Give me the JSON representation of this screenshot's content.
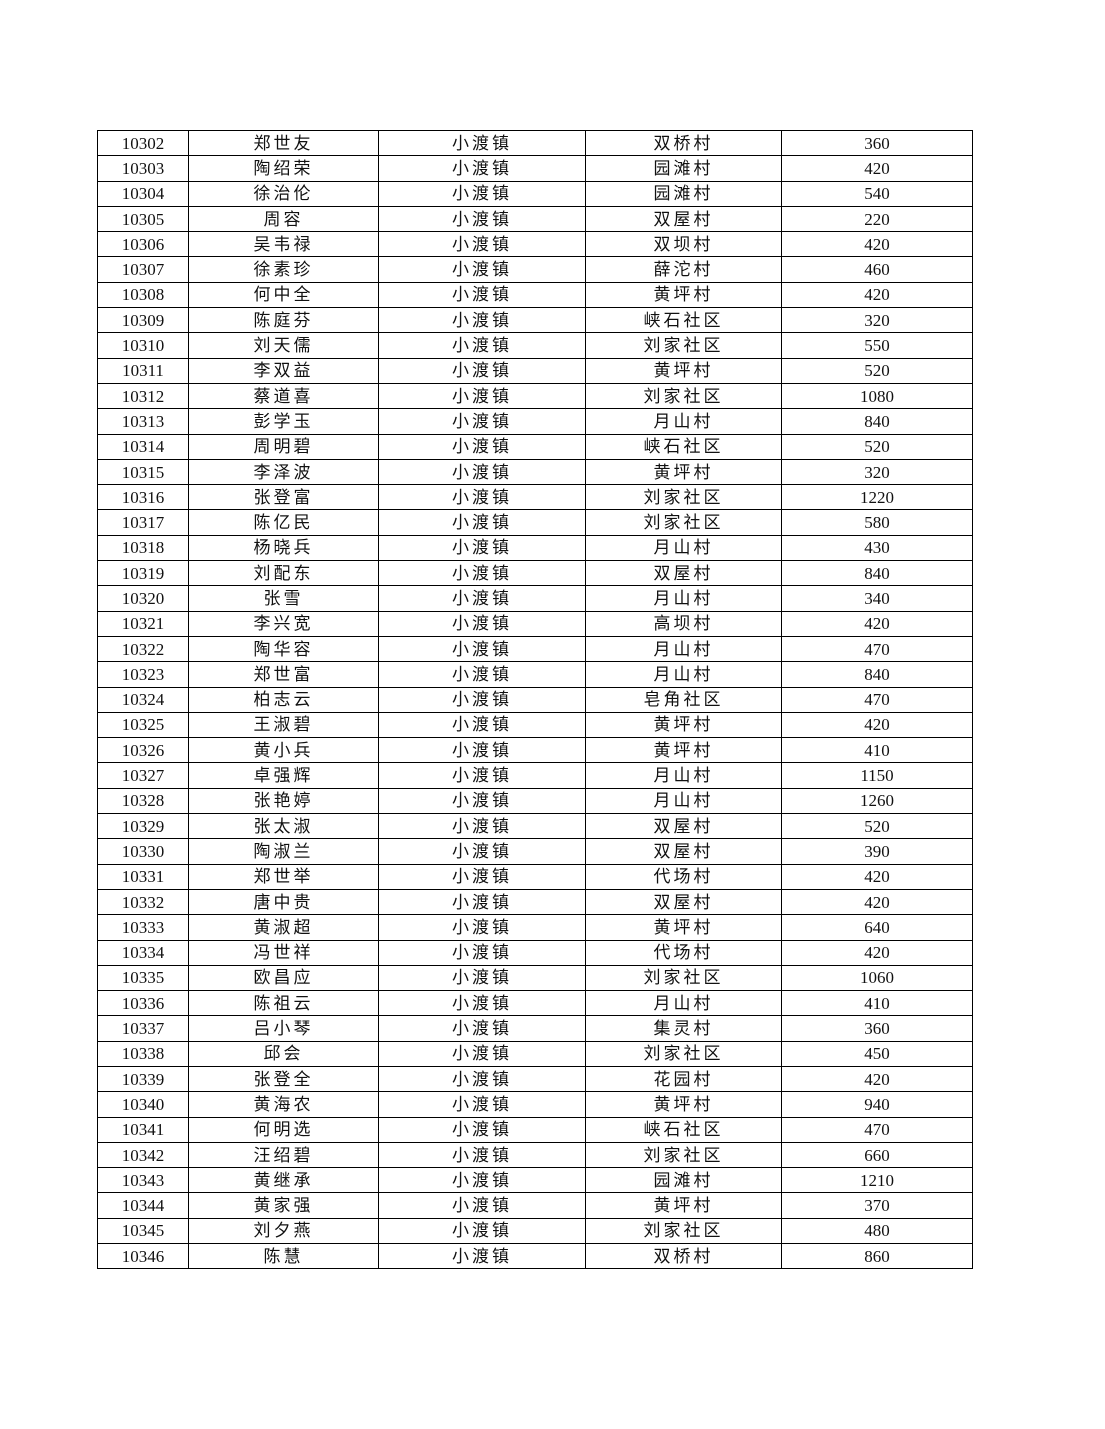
{
  "rows": [
    {
      "id": "10302",
      "name": "郑世友",
      "town": "小渡镇",
      "village": "双桥村",
      "amount": "360"
    },
    {
      "id": "10303",
      "name": "陶绍荣",
      "town": "小渡镇",
      "village": "园滩村",
      "amount": "420"
    },
    {
      "id": "10304",
      "name": "徐治伦",
      "town": "小渡镇",
      "village": "园滩村",
      "amount": "540"
    },
    {
      "id": "10305",
      "name": "周容",
      "town": "小渡镇",
      "village": "双屋村",
      "amount": "220"
    },
    {
      "id": "10306",
      "name": "吴韦禄",
      "town": "小渡镇",
      "village": "双坝村",
      "amount": "420"
    },
    {
      "id": "10307",
      "name": "徐素珍",
      "town": "小渡镇",
      "village": "薛沱村",
      "amount": "460"
    },
    {
      "id": "10308",
      "name": "何中全",
      "town": "小渡镇",
      "village": "黄坪村",
      "amount": "420"
    },
    {
      "id": "10309",
      "name": "陈庭芬",
      "town": "小渡镇",
      "village": "峡石社区",
      "amount": "320"
    },
    {
      "id": "10310",
      "name": "刘天儒",
      "town": "小渡镇",
      "village": "刘家社区",
      "amount": "550"
    },
    {
      "id": "10311",
      "name": "李双益",
      "town": "小渡镇",
      "village": "黄坪村",
      "amount": "520"
    },
    {
      "id": "10312",
      "name": "蔡道喜",
      "town": "小渡镇",
      "village": "刘家社区",
      "amount": "1080"
    },
    {
      "id": "10313",
      "name": "彭学玉",
      "town": "小渡镇",
      "village": "月山村",
      "amount": "840"
    },
    {
      "id": "10314",
      "name": "周明碧",
      "town": "小渡镇",
      "village": "峡石社区",
      "amount": "520"
    },
    {
      "id": "10315",
      "name": "李泽波",
      "town": "小渡镇",
      "village": "黄坪村",
      "amount": "320"
    },
    {
      "id": "10316",
      "name": "张登富",
      "town": "小渡镇",
      "village": "刘家社区",
      "amount": "1220"
    },
    {
      "id": "10317",
      "name": "陈亿民",
      "town": "小渡镇",
      "village": "刘家社区",
      "amount": "580"
    },
    {
      "id": "10318",
      "name": "杨晓兵",
      "town": "小渡镇",
      "village": "月山村",
      "amount": "430"
    },
    {
      "id": "10319",
      "name": "刘配东",
      "town": "小渡镇",
      "village": "双屋村",
      "amount": "840"
    },
    {
      "id": "10320",
      "name": "张雪",
      "town": "小渡镇",
      "village": "月山村",
      "amount": "340"
    },
    {
      "id": "10321",
      "name": "李兴宽",
      "town": "小渡镇",
      "village": "高坝村",
      "amount": "420"
    },
    {
      "id": "10322",
      "name": "陶华容",
      "town": "小渡镇",
      "village": "月山村",
      "amount": "470"
    },
    {
      "id": "10323",
      "name": "郑世富",
      "town": "小渡镇",
      "village": "月山村",
      "amount": "840"
    },
    {
      "id": "10324",
      "name": "柏志云",
      "town": "小渡镇",
      "village": "皂角社区",
      "amount": "470"
    },
    {
      "id": "10325",
      "name": "王淑碧",
      "town": "小渡镇",
      "village": "黄坪村",
      "amount": "420"
    },
    {
      "id": "10326",
      "name": "黄小兵",
      "town": "小渡镇",
      "village": "黄坪村",
      "amount": "410"
    },
    {
      "id": "10327",
      "name": "卓强辉",
      "town": "小渡镇",
      "village": "月山村",
      "amount": "1150"
    },
    {
      "id": "10328",
      "name": "张艳婷",
      "town": "小渡镇",
      "village": "月山村",
      "amount": "1260"
    },
    {
      "id": "10329",
      "name": "张太淑",
      "town": "小渡镇",
      "village": "双屋村",
      "amount": "520"
    },
    {
      "id": "10330",
      "name": "陶淑兰",
      "town": "小渡镇",
      "village": "双屋村",
      "amount": "390"
    },
    {
      "id": "10331",
      "name": "郑世举",
      "town": "小渡镇",
      "village": "代场村",
      "amount": "420"
    },
    {
      "id": "10332",
      "name": "唐中贵",
      "town": "小渡镇",
      "village": "双屋村",
      "amount": "420"
    },
    {
      "id": "10333",
      "name": "黄淑超",
      "town": "小渡镇",
      "village": "黄坪村",
      "amount": "640"
    },
    {
      "id": "10334",
      "name": "冯世祥",
      "town": "小渡镇",
      "village": "代场村",
      "amount": "420"
    },
    {
      "id": "10335",
      "name": "欧昌应",
      "town": "小渡镇",
      "village": "刘家社区",
      "amount": "1060"
    },
    {
      "id": "10336",
      "name": "陈祖云",
      "town": "小渡镇",
      "village": "月山村",
      "amount": "410"
    },
    {
      "id": "10337",
      "name": "吕小琴",
      "town": "小渡镇",
      "village": "集灵村",
      "amount": "360"
    },
    {
      "id": "10338",
      "name": "邱会",
      "town": "小渡镇",
      "village": "刘家社区",
      "amount": "450"
    },
    {
      "id": "10339",
      "name": "张登全",
      "town": "小渡镇",
      "village": "花园村",
      "amount": "420"
    },
    {
      "id": "10340",
      "name": "黄海农",
      "town": "小渡镇",
      "village": "黄坪村",
      "amount": "940"
    },
    {
      "id": "10341",
      "name": "何明选",
      "town": "小渡镇",
      "village": "峡石社区",
      "amount": "470"
    },
    {
      "id": "10342",
      "name": "汪绍碧",
      "town": "小渡镇",
      "village": "刘家社区",
      "amount": "660"
    },
    {
      "id": "10343",
      "name": "黄继承",
      "town": "小渡镇",
      "village": "园滩村",
      "amount": "1210"
    },
    {
      "id": "10344",
      "name": "黄家强",
      "town": "小渡镇",
      "village": "黄坪村",
      "amount": "370"
    },
    {
      "id": "10345",
      "name": "刘夕燕",
      "town": "小渡镇",
      "village": "刘家社区",
      "amount": "480"
    },
    {
      "id": "10346",
      "name": "陈慧",
      "town": "小渡镇",
      "village": "双桥村",
      "amount": "860"
    }
  ]
}
